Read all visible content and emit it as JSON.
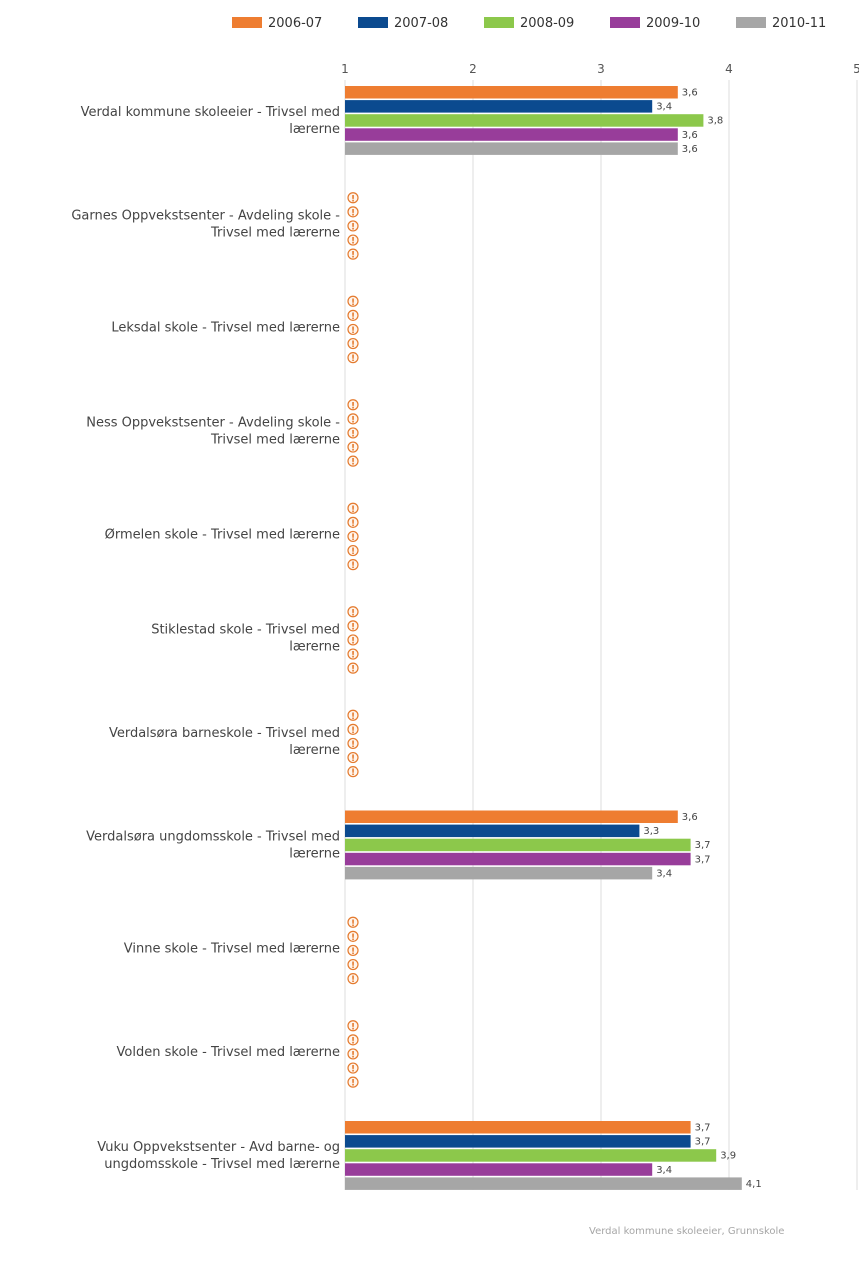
{
  "chart_data": {
    "type": "bar",
    "orientation": "horizontal",
    "xlim": [
      1,
      5
    ],
    "xticks": [
      "1",
      "2",
      "3",
      "4",
      "5"
    ],
    "grid": true,
    "legend_position": "top",
    "categories": [
      [
        "Verdal kommune skoleeier - Trivsel med",
        "lærerne"
      ],
      [
        "Garnes Oppvekstsenter - Avdeling skole -",
        "Trivsel med lærerne"
      ],
      [
        "Leksdal skole - Trivsel med lærerne"
      ],
      [
        "Ness Oppvekstsenter - Avdeling skole -",
        "Trivsel med lærerne"
      ],
      [
        "Ørmelen skole - Trivsel med lærerne"
      ],
      [
        "Stiklestad skole - Trivsel med",
        "lærerne"
      ],
      [
        "Verdalsøra barneskole - Trivsel med",
        "lærerne"
      ],
      [
        "Verdalsøra ungdomsskole - Trivsel med",
        "lærerne"
      ],
      [
        "Vinne skole - Trivsel med lærerne"
      ],
      [
        "Volden skole - Trivsel med lærerne"
      ],
      [
        "Vuku Oppvekstsenter - Avd barne- og",
        "ungdomsskole - Trivsel med lærerne"
      ]
    ],
    "series": [
      {
        "name": "2006-07",
        "color": "#ee7d31",
        "values": [
          3.6,
          null,
          null,
          null,
          null,
          null,
          null,
          3.6,
          null,
          null,
          3.7
        ],
        "labels": [
          "3,6",
          null,
          null,
          null,
          null,
          null,
          null,
          "3,6",
          null,
          null,
          "3,7"
        ]
      },
      {
        "name": "2007-08",
        "color": "#0b4a8f",
        "values": [
          3.4,
          null,
          null,
          null,
          null,
          null,
          null,
          3.3,
          null,
          null,
          3.7
        ],
        "labels": [
          "3,4",
          null,
          null,
          null,
          null,
          null,
          null,
          "3,3",
          null,
          null,
          "3,7"
        ]
      },
      {
        "name": "2008-09",
        "color": "#8cc84b",
        "values": [
          3.8,
          null,
          null,
          null,
          null,
          null,
          null,
          3.7,
          null,
          null,
          3.9
        ],
        "labels": [
          "3,8",
          null,
          null,
          null,
          null,
          null,
          null,
          "3,7",
          null,
          null,
          "3,9"
        ]
      },
      {
        "name": "2009-10",
        "color": "#983d9a",
        "values": [
          3.6,
          null,
          null,
          null,
          null,
          null,
          null,
          3.7,
          null,
          null,
          3.4
        ],
        "labels": [
          "3,6",
          null,
          null,
          null,
          null,
          null,
          null,
          "3,7",
          null,
          null,
          "3,4"
        ]
      },
      {
        "name": "2010-11",
        "color": "#a6a6a6",
        "values": [
          3.6,
          null,
          null,
          null,
          null,
          null,
          null,
          3.4,
          null,
          null,
          4.1
        ],
        "labels": [
          "3,6",
          null,
          null,
          null,
          null,
          null,
          null,
          "3,4",
          null,
          null,
          "4,1"
        ]
      }
    ],
    "missing_marker": "!",
    "colors": {
      "grid": "#dddddd",
      "missing": "#e47a2e"
    }
  },
  "footer": {
    "source": "Verdal kommune skoleeier, Grunnskole"
  }
}
